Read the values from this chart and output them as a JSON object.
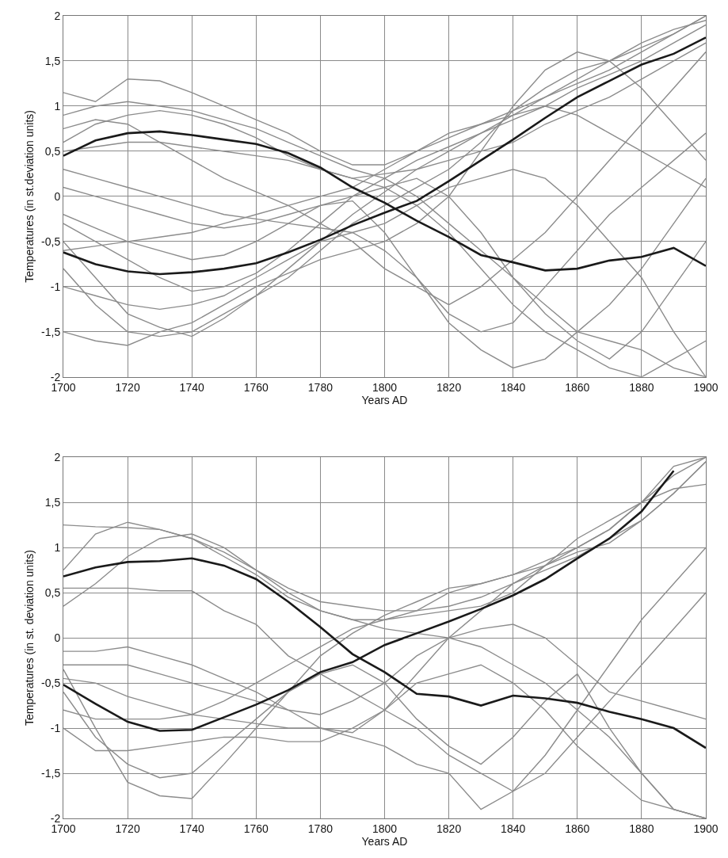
{
  "chart_data": [
    {
      "type": "line",
      "xlabel": "Years AD",
      "ylabel": "Temperatures (in st.deviation units)",
      "x": [
        1700,
        1710,
        1720,
        1730,
        1740,
        1750,
        1760,
        1770,
        1780,
        1790,
        1800,
        1810,
        1820,
        1830,
        1840,
        1850,
        1860,
        1870,
        1880,
        1890,
        1900
      ],
      "xlim": [
        1700,
        1900
      ],
      "xticks": [
        1700,
        1720,
        1740,
        1760,
        1780,
        1800,
        1820,
        1840,
        1860,
        1880,
        1900
      ],
      "ylim": [
        -2,
        2
      ],
      "yticks": [
        {
          "value": -2,
          "label": "-2"
        },
        {
          "value": -1.5,
          "label": "-1,5"
        },
        {
          "value": -1,
          "label": "-1"
        },
        {
          "value": -0.5,
          "label": "-0,5"
        },
        {
          "value": 0,
          "label": "0"
        },
        {
          "value": 0.5,
          "label": "0,5"
        },
        {
          "value": 1,
          "label": "1"
        },
        {
          "value": 1.5,
          "label": "1,5"
        },
        {
          "value": 2,
          "label": "2"
        }
      ],
      "grid": true,
      "line_style": "solid",
      "series": [
        {
          "color": "#8c8c8c",
          "values": [
            0.9,
            1.0,
            1.05,
            1.0,
            0.95,
            0.85,
            0.75,
            0.6,
            0.45,
            0.3,
            0.2,
            0.0,
            -0.3,
            -0.6,
            -0.9,
            -1.2,
            -1.5,
            -1.6,
            -1.7,
            -1.9,
            -2.0
          ]
        },
        {
          "color": "#8c8c8c",
          "values": [
            0.6,
            0.8,
            0.9,
            0.95,
            0.9,
            0.8,
            0.65,
            0.45,
            0.3,
            0.2,
            0.25,
            0.3,
            0.4,
            0.5,
            0.6,
            0.8,
            0.95,
            1.1,
            1.3,
            1.5,
            1.7
          ]
        },
        {
          "color": "#8c8c8c",
          "values": [
            1.15,
            1.05,
            1.3,
            1.28,
            1.15,
            1.0,
            0.85,
            0.7,
            0.5,
            0.35,
            0.35,
            0.5,
            0.65,
            0.8,
            0.95,
            1.1,
            1.25,
            1.4,
            1.6,
            1.8,
            2.0
          ]
        },
        {
          "color": "#8c8c8c",
          "values": [
            -0.3,
            -0.5,
            -0.7,
            -0.9,
            -1.05,
            -1.0,
            -0.85,
            -0.6,
            -0.3,
            0.0,
            0.2,
            0.4,
            0.55,
            0.7,
            0.85,
            1.0,
            1.2,
            1.35,
            1.5,
            1.7,
            1.9
          ]
        },
        {
          "color": "#8c8c8c",
          "values": [
            -0.8,
            -1.2,
            -1.5,
            -1.55,
            -1.5,
            -1.3,
            -1.1,
            -0.8,
            -0.5,
            -0.2,
            0.05,
            0.3,
            0.5,
            0.7,
            0.9,
            1.1,
            1.3,
            1.5,
            1.65,
            1.8,
            2.0
          ]
        },
        {
          "color": "#8c8c8c",
          "values": [
            -0.5,
            -0.9,
            -1.3,
            -1.45,
            -1.55,
            -1.35,
            -1.1,
            -0.9,
            -0.6,
            -0.3,
            -0.1,
            0.1,
            0.3,
            0.6,
            0.95,
            1.2,
            1.4,
            1.5,
            1.7,
            1.85,
            1.95
          ]
        },
        {
          "color": "#8c8c8c",
          "values": [
            0.1,
            0.0,
            -0.1,
            -0.2,
            -0.3,
            -0.35,
            -0.3,
            -0.2,
            -0.1,
            0.0,
            0.1,
            0.2,
            0.0,
            -0.4,
            -0.9,
            -1.3,
            -1.6,
            -1.8,
            -1.5,
            -1.0,
            -0.5
          ]
        },
        {
          "color": "#8c8c8c",
          "values": [
            -0.2,
            -0.35,
            -0.5,
            -0.6,
            -0.7,
            -0.65,
            -0.5,
            -0.3,
            -0.1,
            -0.05,
            -0.4,
            -0.9,
            -1.4,
            -1.7,
            -1.9,
            -1.8,
            -1.5,
            -1.2,
            -0.8,
            -0.3,
            0.2
          ]
        },
        {
          "color": "#8c8c8c",
          "values": [
            0.75,
            0.85,
            0.8,
            0.6,
            0.4,
            0.2,
            0.05,
            -0.1,
            -0.3,
            -0.5,
            -0.8,
            -1.0,
            -1.2,
            -1.0,
            -0.7,
            -0.4,
            0.0,
            0.4,
            0.8,
            1.2,
            1.6
          ]
        },
        {
          "color": "#8c8c8c",
          "values": [
            -1.5,
            -1.6,
            -1.65,
            -1.5,
            -1.4,
            -1.2,
            -1.0,
            -0.85,
            -0.7,
            -0.6,
            -0.5,
            -0.3,
            0.0,
            0.5,
            1.0,
            1.4,
            1.6,
            1.5,
            1.2,
            0.8,
            0.4
          ]
        },
        {
          "color": "#8c8c8c",
          "values": [
            0.3,
            0.2,
            0.1,
            0.0,
            -0.1,
            -0.2,
            -0.25,
            -0.3,
            -0.35,
            -0.4,
            -0.3,
            -0.1,
            0.1,
            0.2,
            0.3,
            0.2,
            -0.1,
            -0.5,
            -0.9,
            -1.5,
            -2.0
          ]
        },
        {
          "color": "#8c8c8c",
          "values": [
            -1.0,
            -1.1,
            -1.2,
            -1.25,
            -1.2,
            -1.1,
            -0.9,
            -0.7,
            -0.5,
            -0.4,
            -0.6,
            -0.9,
            -1.3,
            -1.5,
            -1.4,
            -1.0,
            -0.6,
            -0.2,
            0.1,
            0.4,
            0.7
          ]
        },
        {
          "color": "#8c8c8c",
          "values": [
            0.5,
            0.55,
            0.6,
            0.6,
            0.55,
            0.5,
            0.45,
            0.4,
            0.3,
            0.2,
            0.1,
            -0.1,
            -0.4,
            -0.8,
            -1.2,
            -1.5,
            -1.7,
            -1.9,
            -2.0,
            -1.8,
            -1.6
          ]
        },
        {
          "color": "#8c8c8c",
          "values": [
            -0.6,
            -0.55,
            -0.5,
            -0.45,
            -0.4,
            -0.3,
            -0.2,
            -0.1,
            0.0,
            0.1,
            0.3,
            0.5,
            0.7,
            0.8,
            0.9,
            1.0,
            0.9,
            0.7,
            0.5,
            0.3,
            0.1
          ]
        },
        {
          "color": "#1a1a1a",
          "values": [
            0.45,
            0.62,
            0.7,
            0.72,
            0.68,
            0.63,
            0.58,
            0.48,
            0.32,
            0.1,
            -0.07,
            -0.27,
            -0.45,
            -0.65,
            -0.73,
            -0.82,
            -0.8,
            -0.71,
            -0.67,
            -0.57,
            -0.77
          ]
        },
        {
          "color": "#1a1a1a",
          "values": [
            -0.62,
            -0.75,
            -0.83,
            -0.86,
            -0.84,
            -0.8,
            -0.74,
            -0.62,
            -0.48,
            -0.32,
            -0.18,
            -0.05,
            0.17,
            0.4,
            0.63,
            0.87,
            1.1,
            1.28,
            1.46,
            1.58,
            1.76
          ]
        }
      ]
    },
    {
      "type": "line",
      "xlabel": "Years AD",
      "ylabel": "Temperatures (in st. deviation units)",
      "x": [
        1700,
        1710,
        1720,
        1730,
        1740,
        1750,
        1760,
        1770,
        1780,
        1790,
        1800,
        1810,
        1820,
        1830,
        1840,
        1850,
        1860,
        1870,
        1880,
        1890,
        1900
      ],
      "xlim": [
        1700,
        1900
      ],
      "xticks": [
        1700,
        1720,
        1740,
        1760,
        1780,
        1800,
        1820,
        1840,
        1860,
        1880,
        1900
      ],
      "ylim": [
        -2,
        2
      ],
      "yticks": [
        {
          "value": -2,
          "label": "-2"
        },
        {
          "value": -1.5,
          "label": "-1,5"
        },
        {
          "value": -1,
          "label": "-1"
        },
        {
          "value": -0.5,
          "label": "-0,5"
        },
        {
          "value": 0,
          "label": "0"
        },
        {
          "value": 0.5,
          "label": "0,5"
        },
        {
          "value": 1,
          "label": "1"
        },
        {
          "value": 1.5,
          "label": "1,5"
        },
        {
          "value": 2,
          "label": "2"
        }
      ],
      "grid": true,
      "line_style": "solid",
      "series": [
        {
          "color": "#8c8c8c",
          "values": [
            1.25,
            1.23,
            1.22,
            1.2,
            1.1,
            0.95,
            0.75,
            0.55,
            0.4,
            0.35,
            0.3,
            0.3,
            0.35,
            0.45,
            0.6,
            0.75,
            0.9,
            1.1,
            1.3,
            1.6,
            1.95
          ]
        },
        {
          "color": "#8c8c8c",
          "values": [
            0.35,
            0.6,
            0.9,
            1.1,
            1.15,
            1.0,
            0.75,
            0.5,
            0.3,
            0.2,
            0.2,
            0.3,
            0.5,
            0.6,
            0.7,
            0.85,
            1.0,
            1.2,
            1.5,
            1.8,
            2.0
          ]
        },
        {
          "color": "#8c8c8c",
          "values": [
            0.75,
            1.15,
            1.28,
            1.2,
            1.1,
            0.9,
            0.7,
            0.45,
            0.3,
            0.2,
            0.1,
            0.05,
            0.0,
            -0.1,
            -0.3,
            -0.5,
            -0.8,
            -1.1,
            -1.5,
            -1.9,
            -2.0
          ]
        },
        {
          "color": "#8c8c8c",
          "values": [
            0.55,
            0.55,
            0.55,
            0.52,
            0.52,
            0.3,
            0.15,
            -0.2,
            -0.4,
            -0.6,
            -0.8,
            -1.0,
            -1.3,
            -1.5,
            -1.7,
            -1.5,
            -1.1,
            -0.7,
            -0.3,
            0.1,
            0.5
          ]
        },
        {
          "color": "#8c8c8c",
          "values": [
            -0.15,
            -0.15,
            -0.1,
            -0.2,
            -0.3,
            -0.45,
            -0.6,
            -0.8,
            -1.0,
            -1.1,
            -1.2,
            -1.4,
            -1.5,
            -1.9,
            -1.7,
            -1.3,
            -0.8,
            -0.3,
            0.2,
            0.6,
            1.0
          ]
        },
        {
          "color": "#8c8c8c",
          "values": [
            -0.45,
            -0.5,
            -0.65,
            -0.75,
            -0.85,
            -0.7,
            -0.5,
            -0.3,
            -0.1,
            0.1,
            0.2,
            0.25,
            0.3,
            0.35,
            0.5,
            0.8,
            1.1,
            1.3,
            1.5,
            1.65,
            1.7
          ]
        },
        {
          "color": "#8c8c8c",
          "values": [
            -0.35,
            -1.0,
            -1.6,
            -1.75,
            -1.78,
            -1.4,
            -1.0,
            -0.6,
            -0.2,
            0.05,
            0.25,
            0.4,
            0.55,
            0.6,
            0.7,
            0.8,
            0.95,
            1.05,
            1.3,
            1.6,
            1.95
          ]
        },
        {
          "color": "#8c8c8c",
          "values": [
            -1.0,
            -1.25,
            -1.25,
            -1.2,
            -1.15,
            -1.1,
            -1.1,
            -1.15,
            -1.15,
            -1.0,
            -0.8,
            -0.5,
            -0.4,
            -0.3,
            -0.5,
            -0.8,
            -1.2,
            -1.5,
            -1.8,
            -1.9,
            -2.0
          ]
        },
        {
          "color": "#8c8c8c",
          "values": [
            -0.8,
            -0.9,
            -0.9,
            -0.9,
            -0.85,
            -0.9,
            -0.95,
            -1.0,
            -1.0,
            -1.05,
            -0.8,
            -0.4,
            0.0,
            0.3,
            0.6,
            0.8,
            1.0,
            1.2,
            1.5,
            1.9,
            2.0
          ]
        },
        {
          "color": "#8c8c8c",
          "values": [
            -0.6,
            -1.1,
            -1.4,
            -1.55,
            -1.5,
            -1.2,
            -0.9,
            -0.6,
            -0.4,
            -0.3,
            -0.5,
            -0.9,
            -1.2,
            -1.4,
            -1.1,
            -0.7,
            -0.4,
            -1.0,
            -1.5,
            -1.9,
            -2.0
          ]
        },
        {
          "color": "#8c8c8c",
          "values": [
            -0.3,
            -0.3,
            -0.3,
            -0.4,
            -0.5,
            -0.6,
            -0.7,
            -0.8,
            -0.85,
            -0.7,
            -0.5,
            -0.2,
            0.0,
            0.1,
            0.15,
            0.0,
            -0.3,
            -0.6,
            -0.7,
            -0.8,
            -0.9
          ]
        },
        {
          "color": "#1a1a1a",
          "values": [
            0.68,
            0.78,
            0.84,
            0.85,
            0.88,
            0.8,
            0.65,
            0.4,
            0.12,
            -0.18,
            -0.38,
            -0.62,
            -0.65,
            -0.75,
            -0.64,
            -0.67,
            -0.72,
            -0.82,
            -0.9,
            -1.0,
            -1.22
          ]
        },
        {
          "color": "#1a1a1a",
          "values": [
            -0.52,
            -0.73,
            -0.93,
            -1.03,
            -1.02,
            -0.88,
            -0.74,
            -0.58,
            -0.38,
            -0.27,
            -0.08,
            0.05,
            0.18,
            0.32,
            0.47,
            0.65,
            0.88,
            1.1,
            1.4,
            1.85,
            null
          ]
        }
      ]
    }
  ]
}
